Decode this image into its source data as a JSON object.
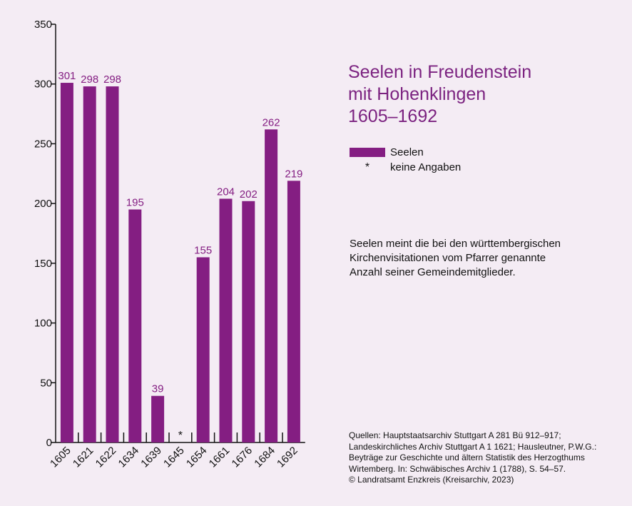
{
  "chart_data": {
    "type": "bar",
    "title_lines": [
      "Seelen in Freudenstein",
      "mit Hohenklingen",
      "1605–1692"
    ],
    "categories": [
      "1605",
      "1621",
      "1622",
      "1634",
      "1639",
      "1645",
      "1654",
      "1661",
      "1676",
      "1684",
      "1692"
    ],
    "series": [
      {
        "name": "Seelen",
        "values": [
          301,
          298,
          298,
          195,
          39,
          null,
          155,
          204,
          202,
          262,
          219
        ]
      }
    ],
    "data_labels": [
      "301",
      "298",
      "298",
      "195",
      "39",
      "*",
      "155",
      "204",
      "202",
      "262",
      "219"
    ],
    "ylim": [
      0,
      350
    ],
    "yticks": [
      0,
      50,
      100,
      150,
      200,
      250,
      300,
      350
    ],
    "grid": false,
    "legend_position": "right",
    "legend": [
      {
        "symbol": "bar",
        "label": "Seelen"
      },
      {
        "symbol": "*",
        "label": "keine Angaben"
      }
    ],
    "colors": {
      "bar": "#841e82",
      "title": "#7b2280",
      "background": "#f4ecf4",
      "axis": "#111111"
    }
  },
  "note_lines": [
    "Seelen meint die bei den württembergischen",
    "Kirchenvisitationen vom Pfarrer genannte",
    "Anzahl seiner Gemeindemitglieder."
  ],
  "source_lines": [
    "Quellen: Hauptstaatsarchiv Stuttgart A 281 Bü 912–917;",
    "Landeskirchliches Archiv Stuttgart A 1 1621; Hausleutner, P.W.G.:",
    "Beyträge zur Geschichte und ältern Statistik des Herzogthums",
    "Wirtemberg. In: Schwäbisches Archiv 1 (1788), S. 54–57.",
    "© Landratsamt Enzkreis (Kreisarchiv, 2023)"
  ]
}
